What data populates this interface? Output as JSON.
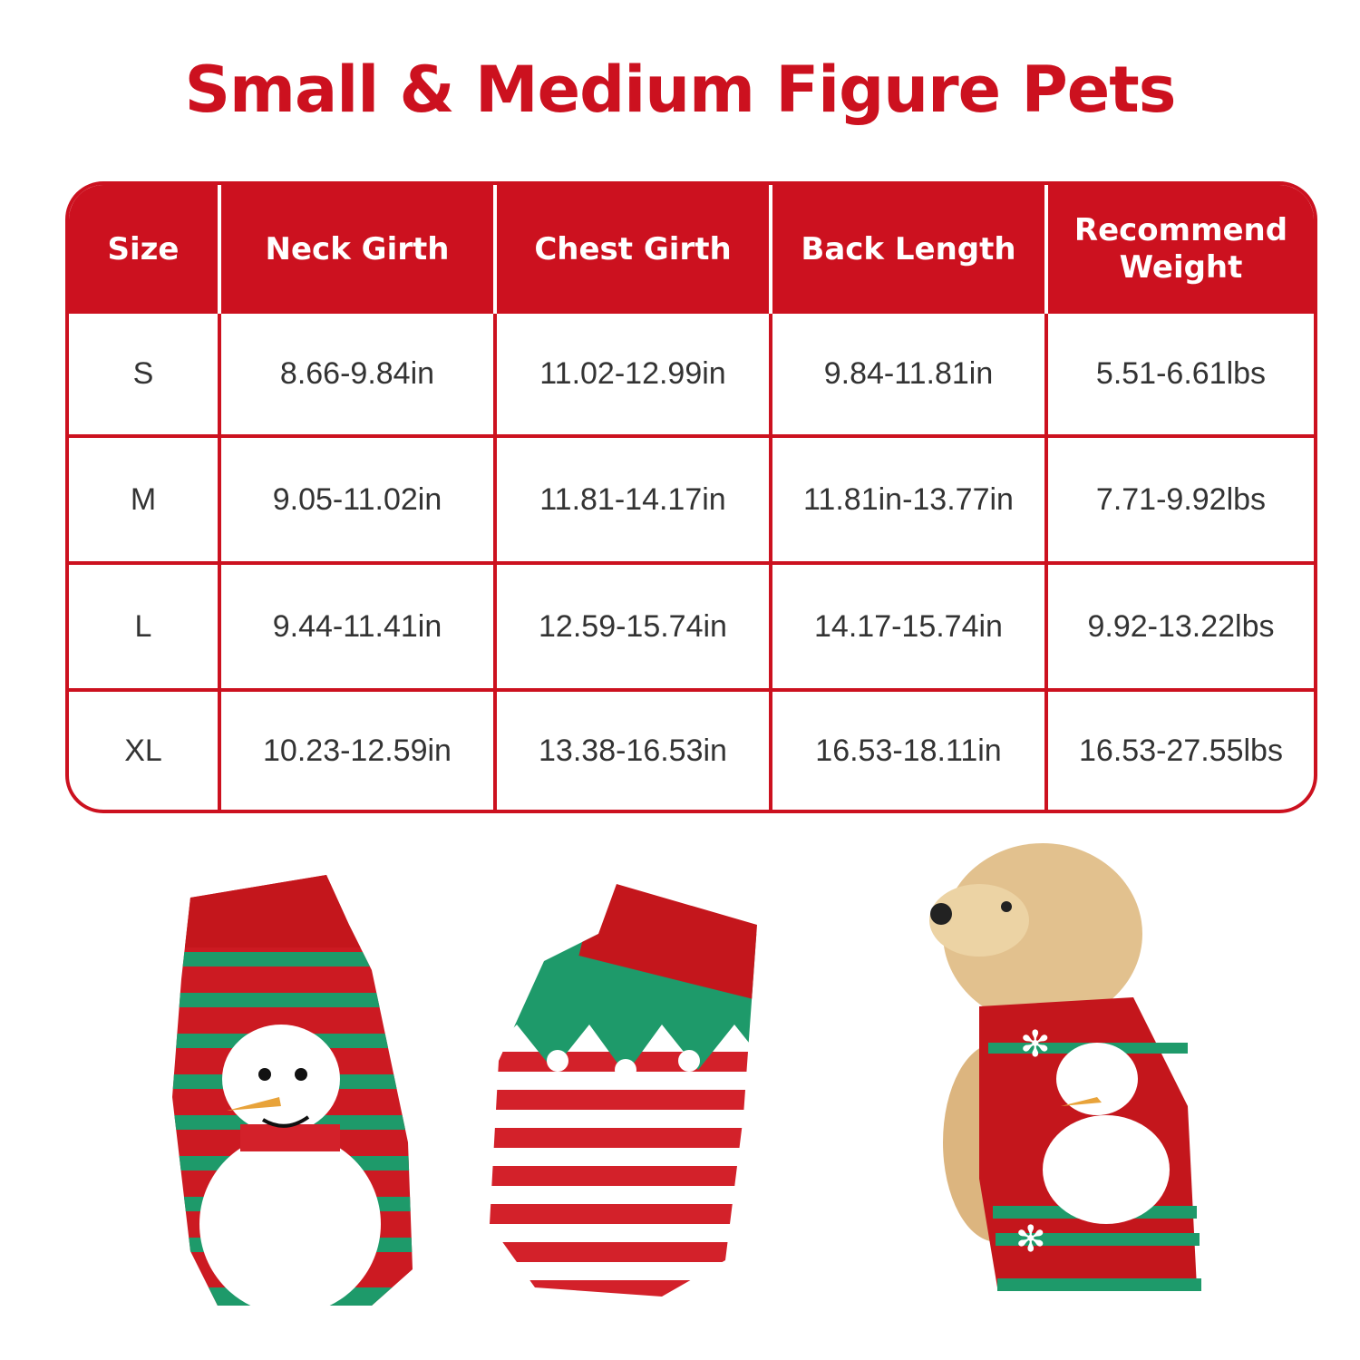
{
  "title": "Small & Medium Figure Pets",
  "table": {
    "headers": [
      "Size",
      "Neck Girth",
      "Chest Girth",
      "Back Length",
      "Recommend Weight"
    ],
    "rows": [
      [
        "S",
        "8.66-9.84in",
        "11.02-12.99in",
        "9.84-11.81in",
        "5.51-6.61lbs"
      ],
      [
        "M",
        "9.05-11.02in",
        "11.81-14.17in",
        "11.81in-13.77in",
        "7.71-9.92lbs"
      ],
      [
        "L",
        "9.44-11.41in",
        "12.59-15.74in",
        "14.17-15.74in",
        "9.92-13.22lbs"
      ],
      [
        "XL",
        "10.23-12.59in",
        "13.38-16.53in",
        "16.53-18.11in",
        "16.53-27.55lbs"
      ]
    ]
  },
  "colors": {
    "accent": "#cc111f",
    "green": "#1e9a6a",
    "text": "#333333"
  }
}
